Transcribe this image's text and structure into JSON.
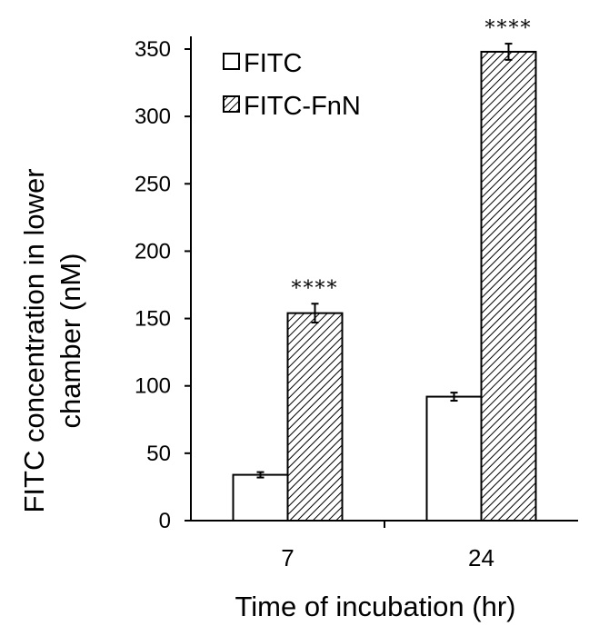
{
  "chart_data": {
    "type": "bar",
    "xlabel": "Time of incubation (hr)",
    "ylabel_lines": [
      "FITC concentration in lower",
      "chamber (nM)"
    ],
    "categories": [
      "7",
      "24"
    ],
    "ylim": [
      0,
      350
    ],
    "yticks": [
      "0",
      "50",
      "100",
      "150",
      "200",
      "250",
      "300",
      "350"
    ],
    "legend_position": "top-left",
    "grid": false,
    "series": [
      {
        "name": "FITC",
        "fill": "white",
        "values": [
          34,
          92
        ],
        "errors": [
          2,
          3
        ]
      },
      {
        "name": "FITC-FnN",
        "fill": "hatched",
        "values": [
          154,
          348
        ],
        "errors": [
          7,
          6
        ]
      }
    ],
    "annotations": [
      {
        "category": "7",
        "series": "FITC-FnN",
        "text": "****"
      },
      {
        "category": "24",
        "series": "FITC-FnN",
        "text": "****"
      }
    ]
  }
}
